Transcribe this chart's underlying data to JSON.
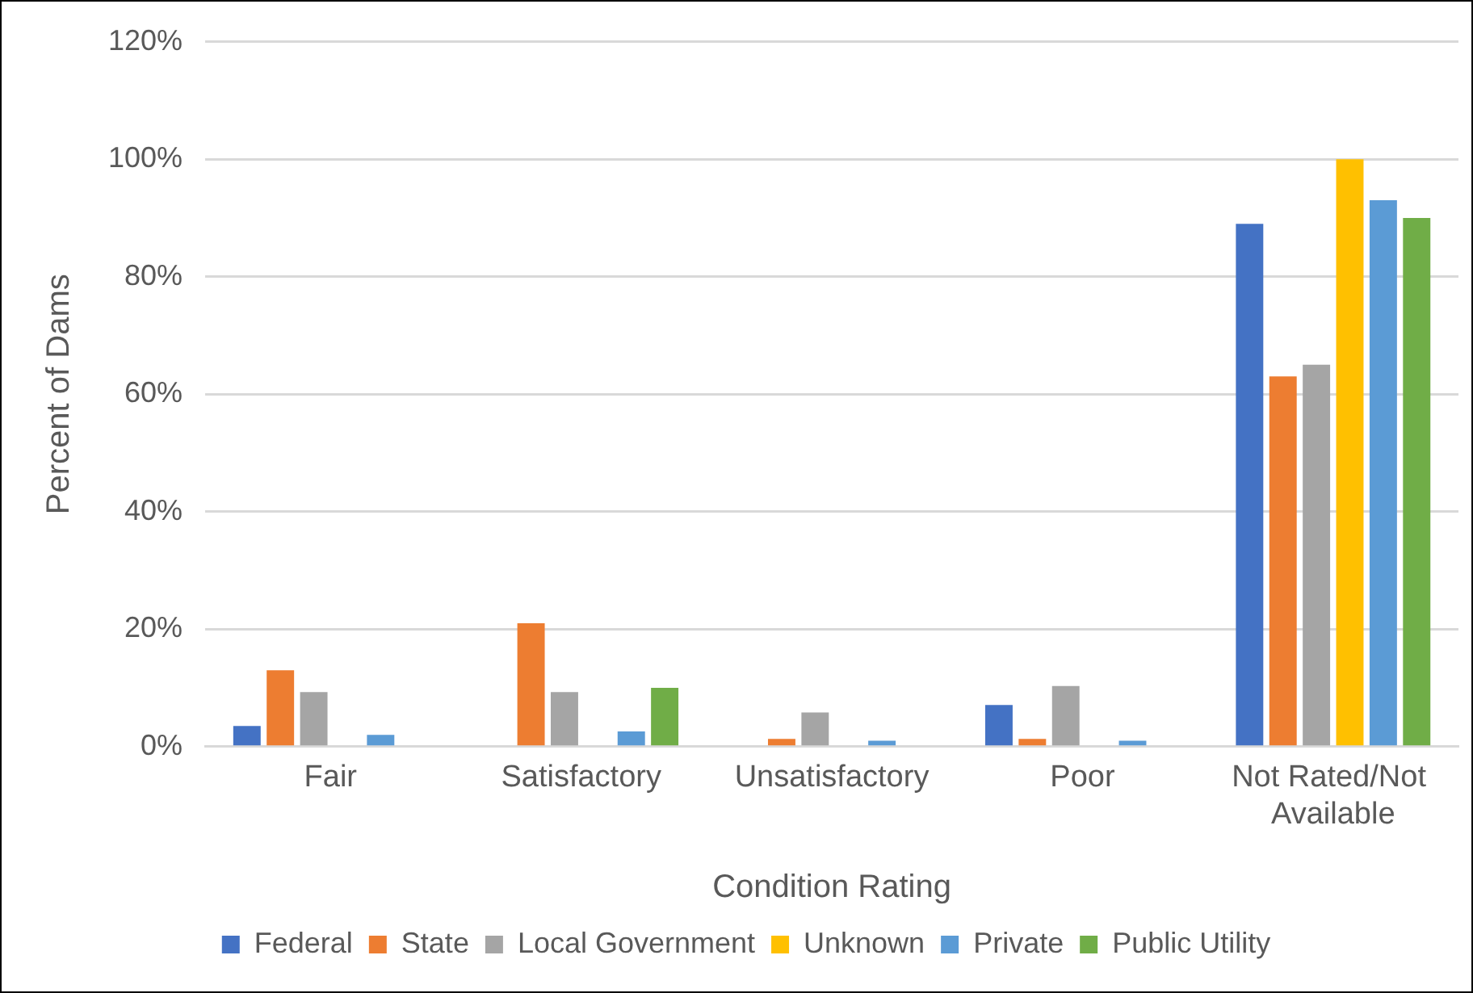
{
  "chart_data": {
    "type": "bar",
    "xlabel": "Condition Rating",
    "ylabel": "Percent of Dams",
    "categories": [
      "Fair",
      "Satisfactory",
      "Unsatisfactory",
      "Poor",
      "Not Rated/Not Available"
    ],
    "series": [
      {
        "name": "Federal",
        "color": "#4472c4",
        "values": [
          3.5,
          0,
          0,
          7.1,
          89
        ]
      },
      {
        "name": "State",
        "color": "#ed7d31",
        "values": [
          13,
          21,
          1.3,
          1.3,
          63
        ]
      },
      {
        "name": "Local Government",
        "color": "#a5a5a5",
        "values": [
          9.3,
          9.3,
          5.8,
          10.3,
          65
        ]
      },
      {
        "name": "Unknown",
        "color": "#ffc000",
        "values": [
          0,
          0,
          0,
          0,
          100
        ]
      },
      {
        "name": "Private",
        "color": "#5b9bd5",
        "values": [
          2,
          2.6,
          1,
          1,
          93
        ]
      },
      {
        "name": "Public Utility",
        "color": "#70ad47",
        "values": [
          0,
          10,
          0,
          0,
          90
        ]
      }
    ],
    "ylim": [
      0,
      120
    ],
    "yticks": [
      {
        "value": 0,
        "label": "0%"
      },
      {
        "value": 20,
        "label": "20%"
      },
      {
        "value": 40,
        "label": "40%"
      },
      {
        "value": 60,
        "label": "60%"
      },
      {
        "value": 80,
        "label": "80%"
      },
      {
        "value": 100,
        "label": "100%"
      },
      {
        "value": 120,
        "label": "120%"
      }
    ],
    "grid": "y",
    "legend": "bottom"
  }
}
